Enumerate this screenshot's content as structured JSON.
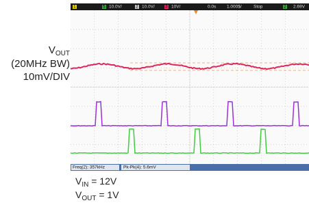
{
  "scope": {
    "status_bar": [
      "1",
      "5",
      "10.0V/",
      "2",
      "10.0V/",
      "3",
      "10V/",
      "0.0s",
      "1.000$/",
      "Stop",
      "2",
      "2.69V"
    ],
    "measurements": [
      "Freq(2): 357kHz",
      "Pk-Pk(4): 5.6mV"
    ]
  },
  "annotations": {
    "vout": {
      "main": "V",
      "sub": "OUT"
    },
    "bandwidth": "(20MHz BW)",
    "scale": "10mV/DIV"
  },
  "conditions": [
    {
      "main": "V",
      "sub": "IN",
      "rest": " = 12V"
    },
    {
      "main": "V",
      "sub": "OUT",
      "rest": " = 1V"
    }
  ]
}
